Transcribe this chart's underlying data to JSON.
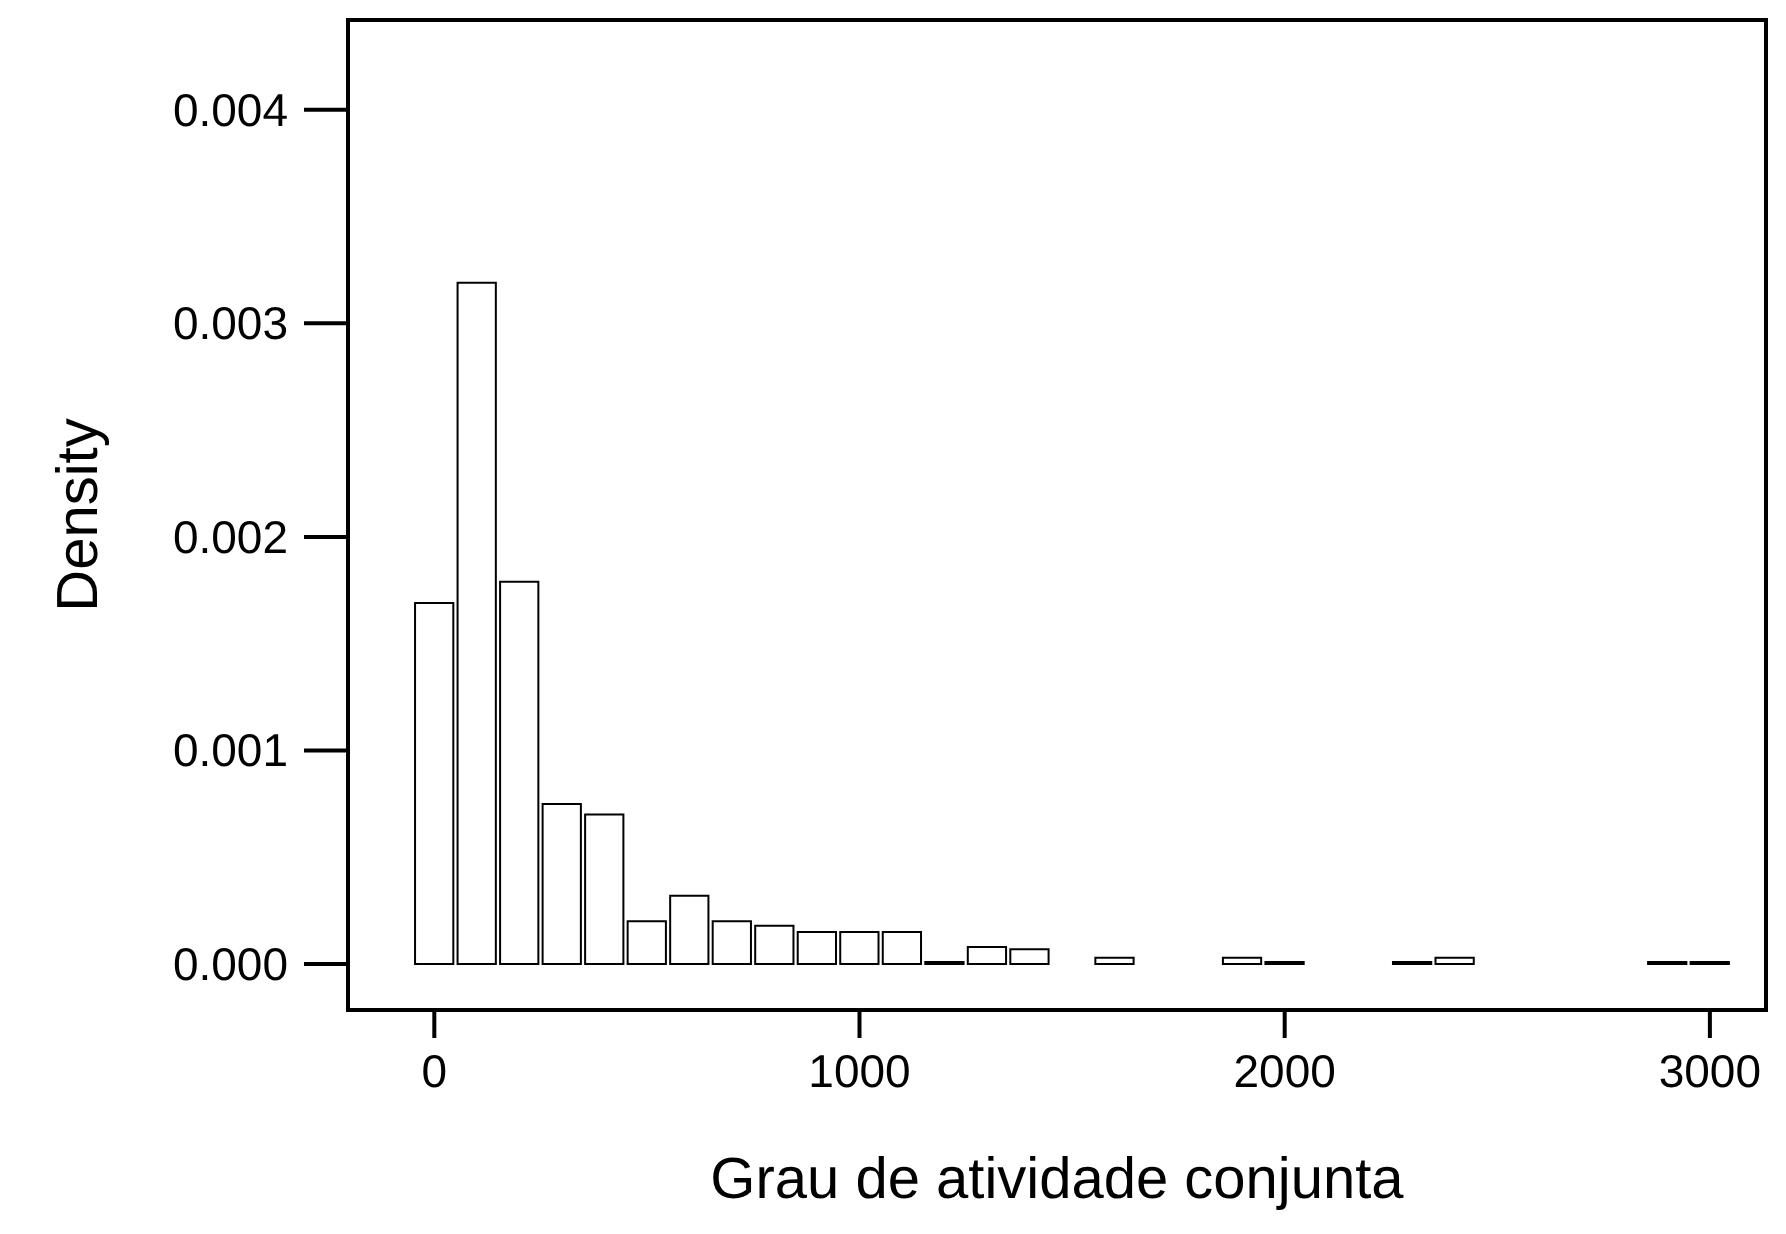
{
  "chart_data": {
    "type": "histogram",
    "xlabel": "Grau de atividade conjunta",
    "ylabel": "Density",
    "bins": [
      -50,
      50,
      150,
      250,
      350,
      450,
      550,
      650,
      750,
      850,
      950,
      1050,
      1150,
      1250,
      1350,
      1450,
      1550,
      1650,
      1750,
      1850,
      1950,
      2050,
      2150,
      2250,
      2350,
      2450,
      2550,
      2650,
      2750,
      2850,
      2950,
      3050
    ],
    "values": [
      0.00169,
      0.00319,
      0.00179,
      0.00075,
      0.0007,
      0.0002,
      0.00032,
      0.0002,
      0.00018,
      0.00015,
      0.00015,
      0.00015,
      1e-05,
      8e-05,
      7e-05,
      0,
      3e-05,
      0,
      0,
      3e-05,
      1e-05,
      0,
      0,
      1e-05,
      3e-05,
      0,
      0,
      0,
      0,
      1e-05,
      1e-05
    ],
    "color": "#ffffff",
    "xlim": [
      -203,
      3132
    ],
    "ylim": [
      -0.000215,
      0.00442
    ],
    "xticks": [
      0,
      1000,
      2000,
      3000
    ],
    "yticks": [
      {
        "value": 0,
        "label": "0.000"
      },
      {
        "value": 0.001,
        "label": "0.001"
      },
      {
        "value": 0.002,
        "label": "0.002"
      },
      {
        "value": 0.003,
        "label": "0.003"
      },
      {
        "value": 0.004,
        "label": "0.004"
      }
    ],
    "grid": false,
    "legend": false
  }
}
